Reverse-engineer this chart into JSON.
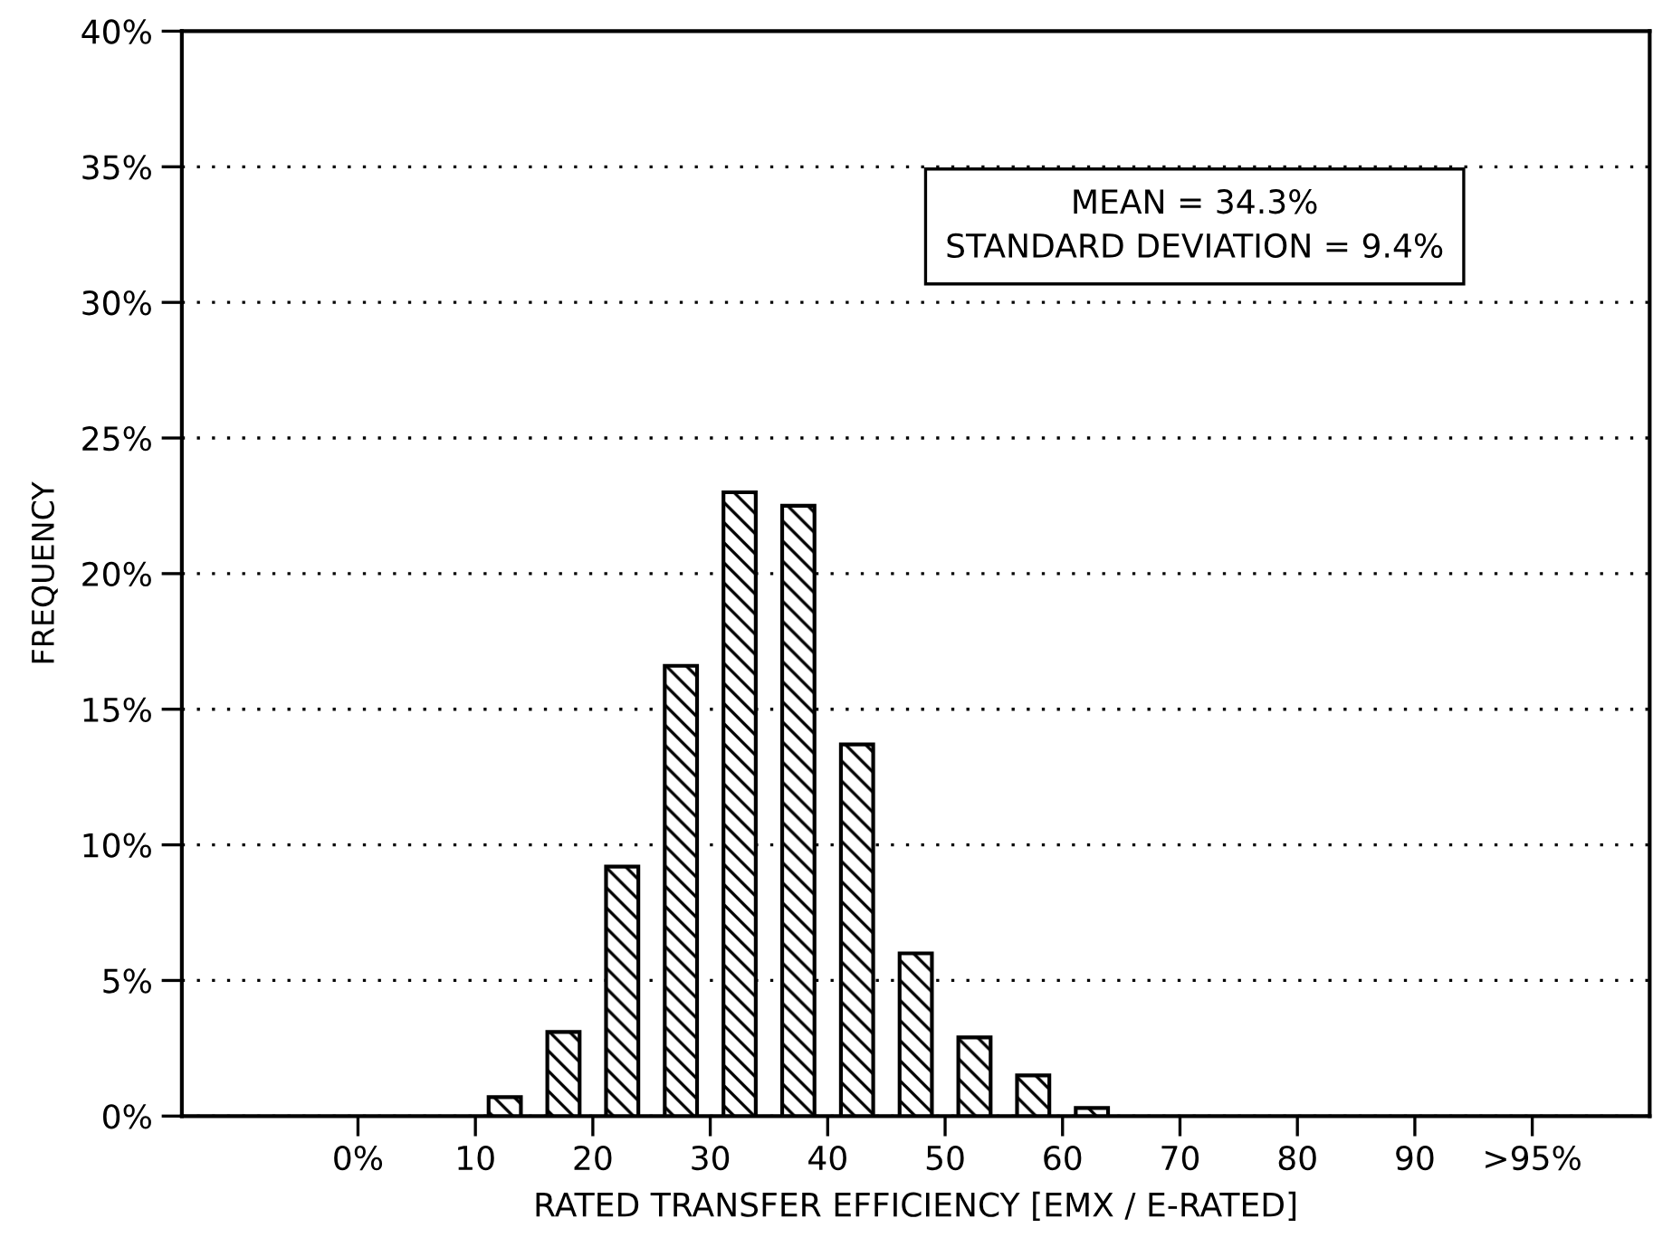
{
  "chart_data": {
    "type": "bar",
    "xlabel": "RATED TRANSFER EFFICIENCY [EMX / E-RATED]",
    "ylabel": "FREQUENCY",
    "x": [
      12.5,
      17.5,
      22.5,
      27.5,
      32.5,
      37.5,
      42.5,
      47.5,
      52.5,
      57.5,
      62.5
    ],
    "values": [
      0.7,
      3.1,
      9.2,
      16.6,
      23.0,
      22.5,
      13.7,
      6.0,
      2.9,
      1.5,
      0.3
    ],
    "xlim": [
      -15,
      110
    ],
    "xticks": [
      {
        "value": 0,
        "label": "0%"
      },
      10,
      20,
      30,
      40,
      50,
      60,
      70,
      80,
      90,
      {
        "value": 100,
        "label": ">95%"
      }
    ],
    "ylim": [
      0,
      40
    ],
    "yticks": [
      {
        "value": 0,
        "label": "0%"
      },
      {
        "value": 5,
        "label": "5%"
      },
      {
        "value": 10,
        "label": "10%"
      },
      {
        "value": 15,
        "label": "15%"
      },
      {
        "value": 20,
        "label": "20%"
      },
      {
        "value": 25,
        "label": "25%"
      },
      {
        "value": 30,
        "label": "30%"
      },
      {
        "value": 35,
        "label": "35%"
      },
      {
        "value": 40,
        "label": "40%"
      }
    ],
    "grid": "y",
    "annotations": [
      "MEAN = 34.3%\nSTANDARD DEVIATION = 9.4%"
    ]
  }
}
